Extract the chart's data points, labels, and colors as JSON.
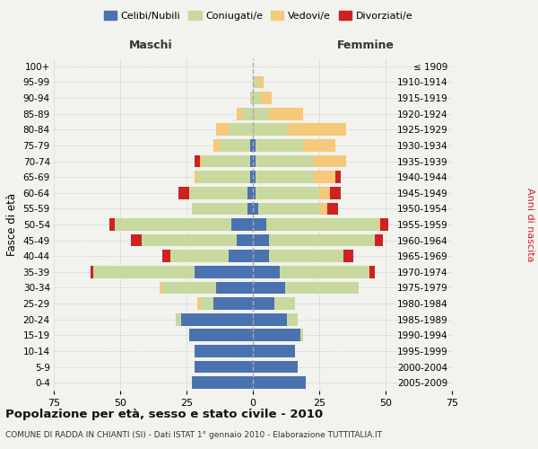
{
  "age_groups": [
    "0-4",
    "5-9",
    "10-14",
    "15-19",
    "20-24",
    "25-29",
    "30-34",
    "35-39",
    "40-44",
    "45-49",
    "50-54",
    "55-59",
    "60-64",
    "65-69",
    "70-74",
    "75-79",
    "80-84",
    "85-89",
    "90-94",
    "95-99",
    "100+"
  ],
  "birth_years": [
    "2005-2009",
    "2000-2004",
    "1995-1999",
    "1990-1994",
    "1985-1989",
    "1980-1984",
    "1975-1979",
    "1970-1974",
    "1965-1969",
    "1960-1964",
    "1955-1959",
    "1950-1954",
    "1945-1949",
    "1940-1944",
    "1935-1939",
    "1930-1934",
    "1925-1929",
    "1920-1924",
    "1915-1919",
    "1910-1914",
    "≤ 1909"
  ],
  "males": {
    "celibi": [
      23,
      22,
      22,
      24,
      27,
      15,
      14,
      22,
      9,
      6,
      8,
      2,
      2,
      1,
      1,
      1,
      0,
      0,
      0,
      0,
      0
    ],
    "coniugati": [
      0,
      0,
      0,
      0,
      2,
      5,
      20,
      38,
      22,
      36,
      44,
      21,
      22,
      20,
      18,
      11,
      9,
      4,
      1,
      0,
      0
    ],
    "vedovi": [
      0,
      0,
      0,
      0,
      0,
      1,
      1,
      0,
      0,
      0,
      0,
      0,
      0,
      1,
      1,
      3,
      5,
      2,
      0,
      0,
      0
    ],
    "divorziati": [
      0,
      0,
      0,
      0,
      0,
      0,
      0,
      1,
      3,
      4,
      2,
      0,
      4,
      0,
      2,
      0,
      0,
      0,
      0,
      0,
      0
    ]
  },
  "females": {
    "nubili": [
      20,
      17,
      16,
      18,
      13,
      8,
      12,
      10,
      6,
      6,
      5,
      2,
      1,
      1,
      1,
      1,
      0,
      0,
      0,
      0,
      0
    ],
    "coniugate": [
      0,
      0,
      0,
      1,
      4,
      8,
      28,
      34,
      28,
      40,
      42,
      23,
      24,
      22,
      22,
      18,
      13,
      6,
      3,
      2,
      0
    ],
    "vedove": [
      0,
      0,
      0,
      0,
      0,
      0,
      0,
      0,
      0,
      0,
      1,
      3,
      4,
      8,
      12,
      12,
      22,
      13,
      4,
      2,
      0
    ],
    "divorziate": [
      0,
      0,
      0,
      0,
      0,
      0,
      0,
      2,
      4,
      3,
      3,
      4,
      4,
      2,
      0,
      0,
      0,
      0,
      0,
      0,
      0
    ]
  },
  "colors": {
    "celibi": "#4a72b0",
    "coniugati": "#c8d9a0",
    "vedovi": "#f5c97a",
    "divorziati": "#cc2222"
  },
  "legend_labels": [
    "Celibi/Nubili",
    "Coniugati/e",
    "Vedovi/e",
    "Divorziati/e"
  ],
  "title": "Popolazione per età, sesso e stato civile - 2010",
  "subtitle": "COMUNE DI RADDA IN CHIANTI (SI) - Dati ISTAT 1° gennaio 2010 - Elaborazione TUTTITALIA.IT",
  "xlabel_left": "Maschi",
  "xlabel_right": "Femmine",
  "ylabel": "Fasce di età",
  "ylabel_right": "Anni di nascita",
  "xlim": 75,
  "bg_color": "#f2f2ee"
}
